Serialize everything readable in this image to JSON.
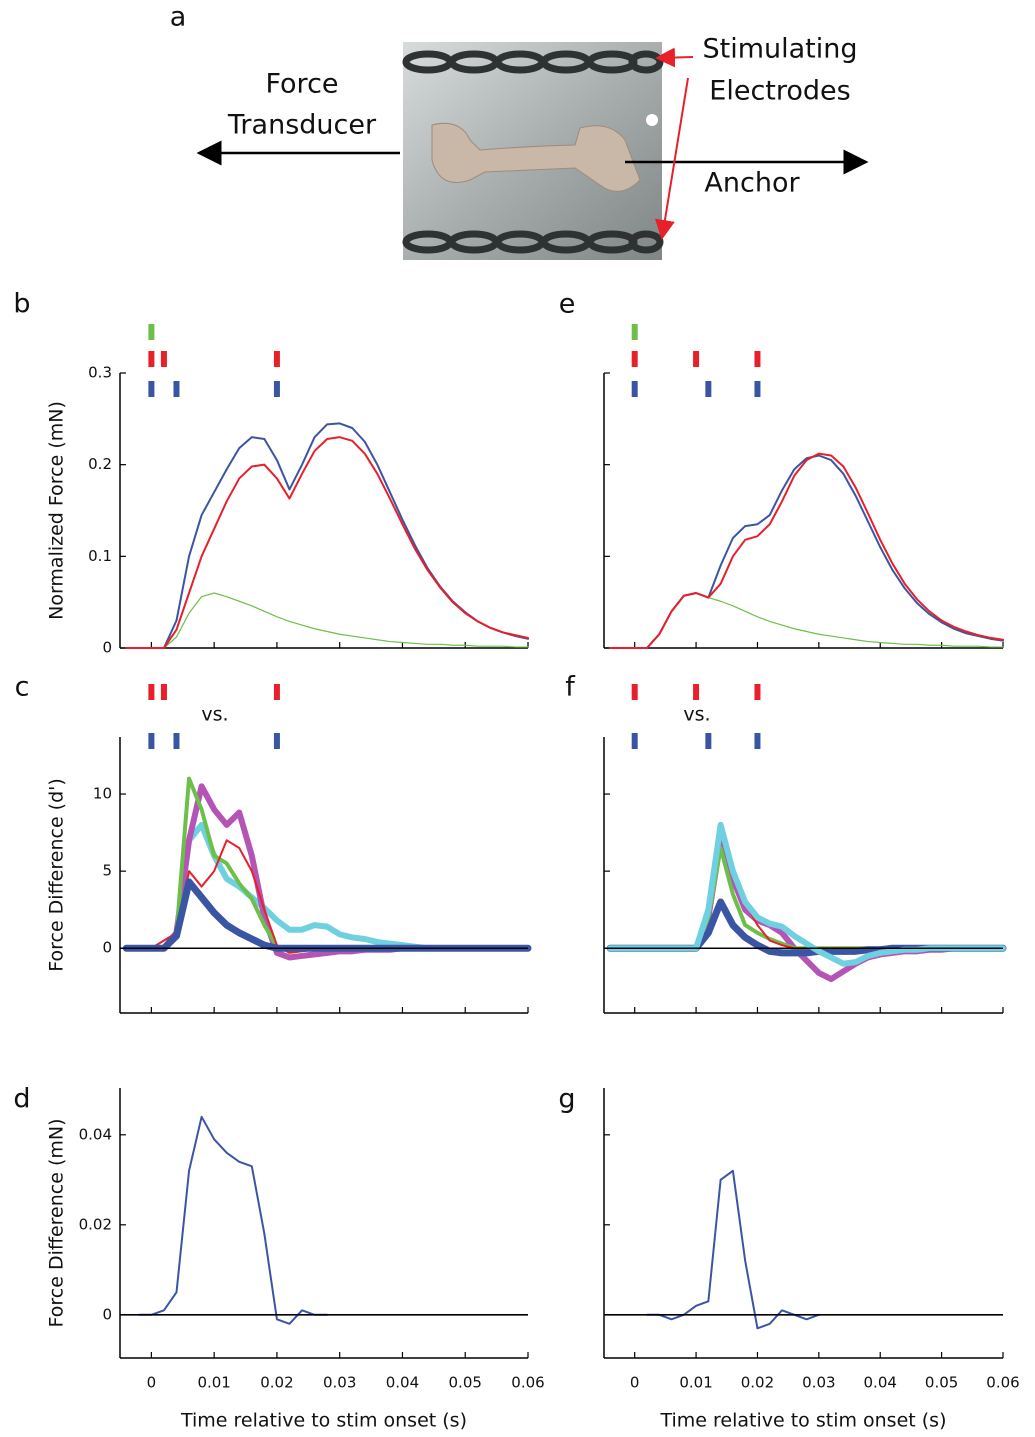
{
  "panel_a": {
    "label": "a",
    "force_transducer": [
      "Force",
      "Transducer"
    ],
    "stimulating_electrodes": [
      "Stimulating",
      "Electrodes"
    ],
    "anchor": "Anchor"
  },
  "chart_data": [
    {
      "type": "line",
      "label": "b",
      "ylabel": "Normalized Force (mN)",
      "x": [
        -0.004,
        -0.002,
        0,
        0.002,
        0.004,
        0.006,
        0.008,
        0.01,
        0.012,
        0.014,
        0.016,
        0.018,
        0.02,
        0.022,
        0.024,
        0.026,
        0.028,
        0.03,
        0.032,
        0.034,
        0.036,
        0.038,
        0.04,
        0.042,
        0.044,
        0.046,
        0.048,
        0.05,
        0.052,
        0.054,
        0.056,
        0.058,
        0.06
      ],
      "series": [
        {
          "color": "#6cc04a",
          "width": 1.2,
          "values": [
            0,
            0,
            0,
            0,
            0.012,
            0.038,
            0.056,
            0.06,
            0.056,
            0.051,
            0.046,
            0.04,
            0.034,
            0.029,
            0.025,
            0.021,
            0.018,
            0.015,
            0.013,
            0.011,
            0.009,
            0.007,
            0.006,
            0.005,
            0.004,
            0.004,
            0.003,
            0.003,
            0.002,
            0.002,
            0.002,
            0.001,
            0.001
          ]
        },
        {
          "color": "#3a55a4",
          "width": 2,
          "values": [
            0,
            0,
            0,
            0,
            0.03,
            0.1,
            0.145,
            0.17,
            0.195,
            0.218,
            0.23,
            0.228,
            0.205,
            0.173,
            0.2,
            0.23,
            0.244,
            0.245,
            0.24,
            0.225,
            0.2,
            0.17,
            0.14,
            0.112,
            0.087,
            0.067,
            0.051,
            0.039,
            0.029,
            0.022,
            0.017,
            0.013,
            0.01
          ]
        },
        {
          "color": "#e8202a",
          "width": 2,
          "values": [
            0,
            0,
            0,
            0,
            0.02,
            0.06,
            0.1,
            0.13,
            0.16,
            0.185,
            0.198,
            0.2,
            0.185,
            0.163,
            0.19,
            0.215,
            0.228,
            0.23,
            0.226,
            0.212,
            0.19,
            0.163,
            0.135,
            0.108,
            0.085,
            0.066,
            0.05,
            0.038,
            0.029,
            0.022,
            0.017,
            0.014,
            0.011
          ]
        }
      ],
      "xlim": [
        -0.005,
        0.06
      ],
      "ylim": [
        0,
        0.3
      ],
      "xticks": [
        0,
        0.01,
        0.02,
        0.03,
        0.04,
        0.05,
        0.06
      ],
      "yticks": [
        0,
        0.1,
        0.2,
        0.3
      ],
      "show_xtick_labels": false,
      "show_ytick_labels": true,
      "stim_trains": [
        {
          "color": "#6cc04a",
          "times": [
            0
          ]
        },
        {
          "color": "#e8202a",
          "times": [
            0,
            0.002,
            0.02
          ]
        },
        {
          "color": "#3a55a4",
          "times": [
            0,
            0.004,
            0.02
          ]
        }
      ]
    },
    {
      "type": "line",
      "label": "c",
      "ylabel": "Force Difference (d')",
      "annotation": "vs.",
      "x": [
        -0.004,
        -0.002,
        0,
        0.002,
        0.004,
        0.006,
        0.008,
        0.01,
        0.012,
        0.014,
        0.016,
        0.018,
        0.02,
        0.022,
        0.024,
        0.026,
        0.028,
        0.03,
        0.032,
        0.034,
        0.036,
        0.038,
        0.04,
        0.042,
        0.044,
        0.046,
        0.048,
        0.05,
        0.052,
        0.054,
        0.056,
        0.058,
        0.06
      ],
      "series": [
        {
          "color": "#6fd0e0",
          "width": 6,
          "values": [
            0,
            0,
            0,
            0,
            1,
            7,
            8,
            6,
            4.5,
            4,
            3.3,
            2.6,
            1.8,
            1.2,
            1.2,
            1.5,
            1.4,
            0.9,
            0.7,
            0.6,
            0.4,
            0.3,
            0.2,
            0.1,
            0,
            0,
            0,
            0,
            0,
            0,
            0,
            0,
            0
          ]
        },
        {
          "color": "#b455b6",
          "width": 6,
          "values": [
            0,
            0,
            0,
            0,
            1,
            7,
            10.5,
            9,
            8,
            8.8,
            6,
            2,
            -0.3,
            -0.6,
            -0.5,
            -0.4,
            -0.3,
            -0.2,
            -0.2,
            -0.1,
            -0.1,
            -0.1,
            0,
            0,
            0,
            0,
            0,
            0,
            0,
            0,
            0,
            0,
            0
          ]
        },
        {
          "color": "#6cc04a",
          "width": 4,
          "values": [
            0,
            0,
            0,
            0,
            1,
            11,
            9,
            6,
            5.5,
            4.2,
            3.2,
            1.5,
            0.1,
            -0.2,
            -0.1,
            0,
            0,
            0,
            0,
            0,
            0,
            0,
            0,
            0,
            0,
            0,
            0,
            0,
            0,
            0,
            0,
            0,
            0
          ]
        },
        {
          "color": "#e8202a",
          "width": 2,
          "values": [
            0,
            0,
            0,
            0.5,
            1,
            5,
            4,
            5,
            7,
            6.5,
            5,
            2.5,
            0.2,
            -0.3,
            -0.2,
            -0.1,
            0,
            0,
            0,
            0,
            0,
            0,
            0,
            0,
            0,
            0,
            0,
            0,
            0,
            0,
            0,
            0,
            0
          ]
        },
        {
          "color": "#3a55a4",
          "width": 7,
          "values": [
            0,
            0,
            0,
            0,
            0.8,
            4.3,
            3.3,
            2.3,
            1.5,
            1,
            0.6,
            0.2,
            0,
            0,
            0,
            0,
            0,
            0,
            0,
            0,
            0,
            0,
            0,
            0,
            0,
            0,
            0,
            0,
            0,
            0,
            0,
            0,
            0
          ]
        }
      ],
      "xlim": [
        -0.005,
        0.06
      ],
      "ylim": [
        -4.2,
        13.7
      ],
      "xticks": [
        0,
        0.01,
        0.02,
        0.03,
        0.04,
        0.05,
        0.06
      ],
      "yticks": [
        0,
        5,
        10
      ],
      "show_xtick_labels": false,
      "show_ytick_labels": true,
      "reference_line": 0,
      "stim_trains": [
        {
          "color": "#e8202a",
          "times": [
            0,
            0.002,
            0.02
          ]
        },
        {
          "color": "#3a55a4",
          "times": [
            0,
            0.004,
            0.02
          ]
        }
      ]
    },
    {
      "type": "line",
      "label": "d",
      "ylabel": "Force Difference (mN)",
      "xlabel": "Time relative to stim onset (s)",
      "x": [
        -0.004,
        -0.002,
        0,
        0.002,
        0.004,
        0.006,
        0.008,
        0.01,
        0.012,
        0.014,
        0.016,
        0.018,
        0.02,
        0.022,
        0.024,
        0.026,
        0.028,
        0.03,
        0.032,
        0.034,
        0.036,
        0.038,
        0.04,
        0.042,
        0.044,
        0.046,
        0.048,
        0.05,
        0.052,
        0.054,
        0.056,
        0.058,
        0.06
      ],
      "series": [
        {
          "color": "#3a55a4",
          "width": 2,
          "values": [
            null,
            0,
            0,
            0.001,
            0.005,
            0.032,
            0.044,
            0.039,
            0.036,
            0.034,
            0.033,
            0.018,
            -0.001,
            -0.002,
            0.001,
            0,
            0,
            null,
            null,
            null,
            null,
            null,
            null,
            null,
            null,
            null,
            null,
            null,
            null,
            null,
            null,
            null,
            null
          ]
        }
      ],
      "xlim": [
        -0.005,
        0.06
      ],
      "ylim": [
        -0.0096,
        0.0504
      ],
      "xticks": [
        0,
        0.01,
        0.02,
        0.03,
        0.04,
        0.05,
        0.06
      ],
      "yticks": [
        0,
        0.02,
        0.04
      ],
      "show_xtick_labels": true,
      "show_ytick_labels": true,
      "reference_line": 0
    },
    {
      "type": "line",
      "label": "e",
      "x": [
        -0.004,
        -0.002,
        0,
        0.002,
        0.004,
        0.006,
        0.008,
        0.01,
        0.012,
        0.014,
        0.016,
        0.018,
        0.02,
        0.022,
        0.024,
        0.026,
        0.028,
        0.03,
        0.032,
        0.034,
        0.036,
        0.038,
        0.04,
        0.042,
        0.044,
        0.046,
        0.048,
        0.05,
        0.052,
        0.054,
        0.056,
        0.058,
        0.06
      ],
      "series": [
        {
          "color": "#6cc04a",
          "width": 1.2,
          "values": [
            0,
            0,
            0,
            0,
            0.015,
            0.04,
            0.057,
            0.06,
            0.055,
            0.051,
            0.046,
            0.04,
            0.034,
            0.029,
            0.025,
            0.021,
            0.018,
            0.015,
            0.013,
            0.011,
            0.009,
            0.007,
            0.006,
            0.005,
            0.004,
            0.004,
            0.003,
            0.003,
            0.002,
            0.002,
            0.002,
            0.001,
            0.001
          ]
        },
        {
          "color": "#3a55a4",
          "width": 2,
          "values": [
            0,
            0,
            0,
            0,
            0.015,
            0.04,
            0.057,
            0.06,
            0.055,
            0.09,
            0.12,
            0.133,
            0.135,
            0.145,
            0.172,
            0.195,
            0.207,
            0.21,
            0.205,
            0.19,
            0.166,
            0.138,
            0.11,
            0.085,
            0.065,
            0.049,
            0.037,
            0.028,
            0.021,
            0.016,
            0.013,
            0.01,
            0.008
          ]
        },
        {
          "color": "#e8202a",
          "width": 2,
          "values": [
            0,
            0,
            0,
            0,
            0.015,
            0.04,
            0.057,
            0.06,
            0.055,
            0.07,
            0.1,
            0.118,
            0.122,
            0.135,
            0.16,
            0.188,
            0.205,
            0.212,
            0.21,
            0.198,
            0.175,
            0.147,
            0.118,
            0.092,
            0.07,
            0.053,
            0.04,
            0.03,
            0.023,
            0.018,
            0.014,
            0.011,
            0.009
          ]
        }
      ],
      "xlim": [
        -0.005,
        0.06
      ],
      "ylim": [
        0,
        0.3
      ],
      "xticks": [
        0,
        0.01,
        0.02,
        0.03,
        0.04,
        0.05,
        0.06
      ],
      "yticks": [
        0,
        0.1,
        0.2,
        0.3
      ],
      "show_xtick_labels": false,
      "show_ytick_labels": false,
      "stim_trains": [
        {
          "color": "#6cc04a",
          "times": [
            0
          ]
        },
        {
          "color": "#e8202a",
          "times": [
            0,
            0.01,
            0.02
          ]
        },
        {
          "color": "#3a55a4",
          "times": [
            0,
            0.012,
            0.02
          ]
        }
      ]
    },
    {
      "type": "line",
      "label": "f",
      "annotation": "vs.",
      "x": [
        -0.004,
        -0.002,
        0,
        0.002,
        0.004,
        0.006,
        0.008,
        0.01,
        0.012,
        0.014,
        0.016,
        0.018,
        0.02,
        0.022,
        0.024,
        0.026,
        0.028,
        0.03,
        0.032,
        0.034,
        0.036,
        0.038,
        0.04,
        0.042,
        0.044,
        0.046,
        0.048,
        0.05,
        0.052,
        0.054,
        0.056,
        0.058,
        0.06
      ],
      "series": [
        {
          "color": "#b455b6",
          "width": 6,
          "values": [
            0,
            0,
            0,
            0,
            0,
            0,
            0,
            0,
            2,
            7,
            4.5,
            2.5,
            1.8,
            1.5,
            1,
            0,
            -0.8,
            -1.6,
            -2,
            -1.5,
            -1,
            -0.6,
            -0.4,
            -0.3,
            -0.2,
            -0.2,
            -0.1,
            -0.1,
            0,
            0,
            0,
            0,
            0
          ]
        },
        {
          "color": "#6cc04a",
          "width": 4,
          "values": [
            0,
            0,
            0,
            0,
            0,
            0,
            0,
            0,
            2,
            6.5,
            3.5,
            1.5,
            1,
            0.6,
            0.3,
            0,
            0,
            0,
            0,
            0,
            0,
            0,
            0,
            0,
            0,
            0,
            0,
            0,
            0,
            0,
            0,
            0,
            0
          ]
        },
        {
          "color": "#e8202a",
          "width": 2,
          "values": [
            0,
            0,
            0,
            0,
            0,
            0,
            0,
            0,
            2.5,
            7.5,
            5,
            3,
            1.5,
            0.5,
            0.2,
            0,
            0,
            0,
            0,
            0,
            0,
            0,
            0,
            0,
            0,
            0,
            0,
            0,
            0,
            0,
            0,
            0,
            0
          ]
        },
        {
          "color": "#3a55a4",
          "width": 7,
          "values": [
            0,
            0,
            0,
            0,
            0,
            0,
            0,
            0,
            1,
            3,
            1.5,
            0.7,
            0.2,
            -0.2,
            -0.3,
            -0.3,
            -0.3,
            -0.2,
            -0.2,
            -0.2,
            -0.2,
            -0.1,
            -0.1,
            0,
            0,
            0,
            0,
            0,
            0,
            0,
            0,
            0,
            0
          ]
        },
        {
          "color": "#6fd0e0",
          "width": 6,
          "values": [
            0,
            0,
            0,
            0,
            0,
            0,
            0,
            0,
            2.5,
            8,
            5,
            3,
            2,
            1.6,
            1.4,
            0.8,
            0.3,
            -0.2,
            -0.6,
            -1,
            -0.9,
            -0.5,
            -0.3,
            -0.2,
            -0.1,
            -0.1,
            0,
            0,
            0,
            0,
            0,
            0,
            0
          ]
        }
      ],
      "xlim": [
        -0.005,
        0.06
      ],
      "ylim": [
        -4.2,
        13.7
      ],
      "xticks": [
        0,
        0.01,
        0.02,
        0.03,
        0.04,
        0.05,
        0.06
      ],
      "yticks": [
        0,
        5,
        10
      ],
      "show_xtick_labels": false,
      "show_ytick_labels": false,
      "reference_line": 0,
      "stim_trains": [
        {
          "color": "#e8202a",
          "times": [
            0,
            0.01,
            0.02
          ]
        },
        {
          "color": "#3a55a4",
          "times": [
            0,
            0.012,
            0.02
          ]
        }
      ]
    },
    {
      "type": "line",
      "label": "g",
      "xlabel": "Time relative to stim onset (s)",
      "x": [
        -0.004,
        -0.002,
        0,
        0.002,
        0.004,
        0.006,
        0.008,
        0.01,
        0.012,
        0.014,
        0.016,
        0.018,
        0.02,
        0.022,
        0.024,
        0.026,
        0.028,
        0.03,
        0.032,
        0.034,
        0.036,
        0.038,
        0.04,
        0.042,
        0.044,
        0.046,
        0.048,
        0.05,
        0.052,
        0.054,
        0.056,
        0.058,
        0.06
      ],
      "series": [
        {
          "color": "#3a55a4",
          "width": 2,
          "values": [
            null,
            null,
            null,
            0,
            0,
            -0.001,
            0,
            0.002,
            0.003,
            0.03,
            0.032,
            0.012,
            -0.003,
            -0.002,
            0.001,
            0,
            -0.001,
            0,
            null,
            null,
            null,
            null,
            null,
            null,
            null,
            null,
            null,
            null,
            null,
            null,
            null,
            null,
            null
          ]
        }
      ],
      "xlim": [
        -0.005,
        0.06
      ],
      "ylim": [
        -0.0096,
        0.0504
      ],
      "xticks": [
        0,
        0.01,
        0.02,
        0.03,
        0.04,
        0.05,
        0.06
      ],
      "yticks": [
        0,
        0.02,
        0.04
      ],
      "show_xtick_labels": true,
      "show_ytick_labels": false,
      "reference_line": 0
    }
  ]
}
